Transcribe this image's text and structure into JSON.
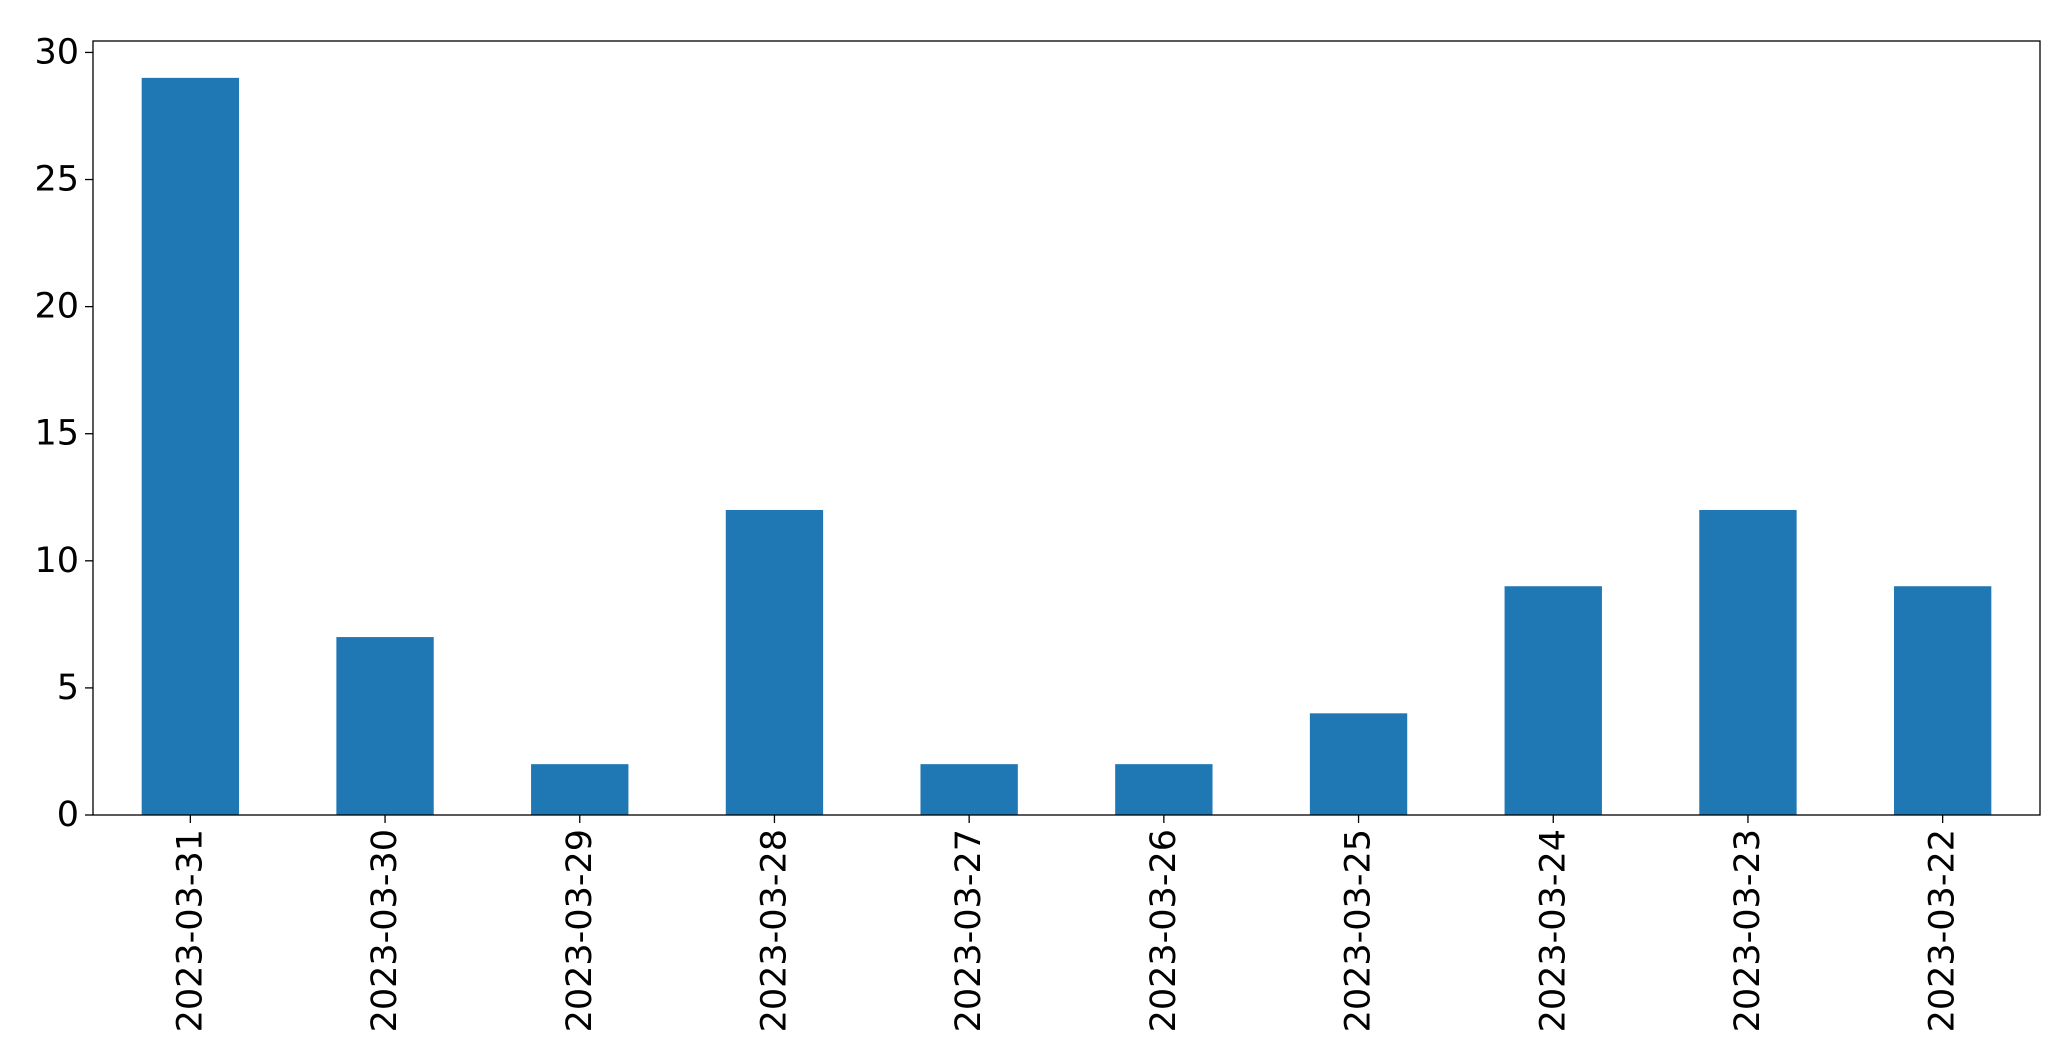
{
  "chart_data": {
    "type": "bar",
    "categories": [
      "2023-03-31",
      "2023-03-30",
      "2023-03-29",
      "2023-03-28",
      "2023-03-27",
      "2023-03-26",
      "2023-03-25",
      "2023-03-24",
      "2023-03-23",
      "2023-03-22"
    ],
    "values": [
      29,
      7,
      2,
      12,
      2,
      2,
      4,
      9,
      12,
      9
    ],
    "title": "",
    "xlabel": "",
    "ylabel": "",
    "ylim": [
      0,
      30.45
    ],
    "yticks": [
      0,
      5,
      10,
      15,
      20,
      25,
      30
    ],
    "grid": false,
    "legend": "none",
    "bar_color": "#1f77b4"
  }
}
